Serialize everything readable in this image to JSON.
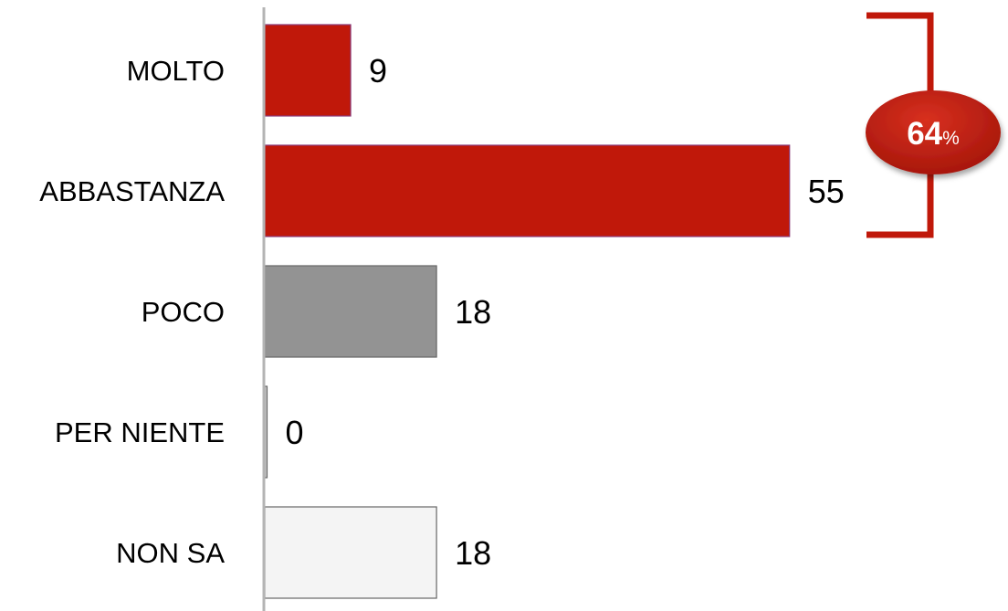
{
  "chart_data": {
    "type": "bar",
    "orientation": "horizontal",
    "categories": [
      "MOLTO",
      "ABBASTANZA",
      "POCO",
      "PER NIENTE",
      "NON SA"
    ],
    "values": [
      9,
      55,
      18,
      0,
      18
    ],
    "value_labels": [
      "9",
      "55",
      "18",
      "0",
      "18"
    ],
    "bar_colors": [
      "#c0180a",
      "#c0180a",
      "#939393",
      "#c8c8c8",
      "#f4f4f4"
    ],
    "xlim": [
      0,
      60
    ],
    "grid": false,
    "legend": "none",
    "annotation": {
      "type": "bracket-total",
      "spans": [
        "MOLTO",
        "ABBASTANZA"
      ],
      "value": "64",
      "unit": "%",
      "color": "#c0180a"
    }
  }
}
